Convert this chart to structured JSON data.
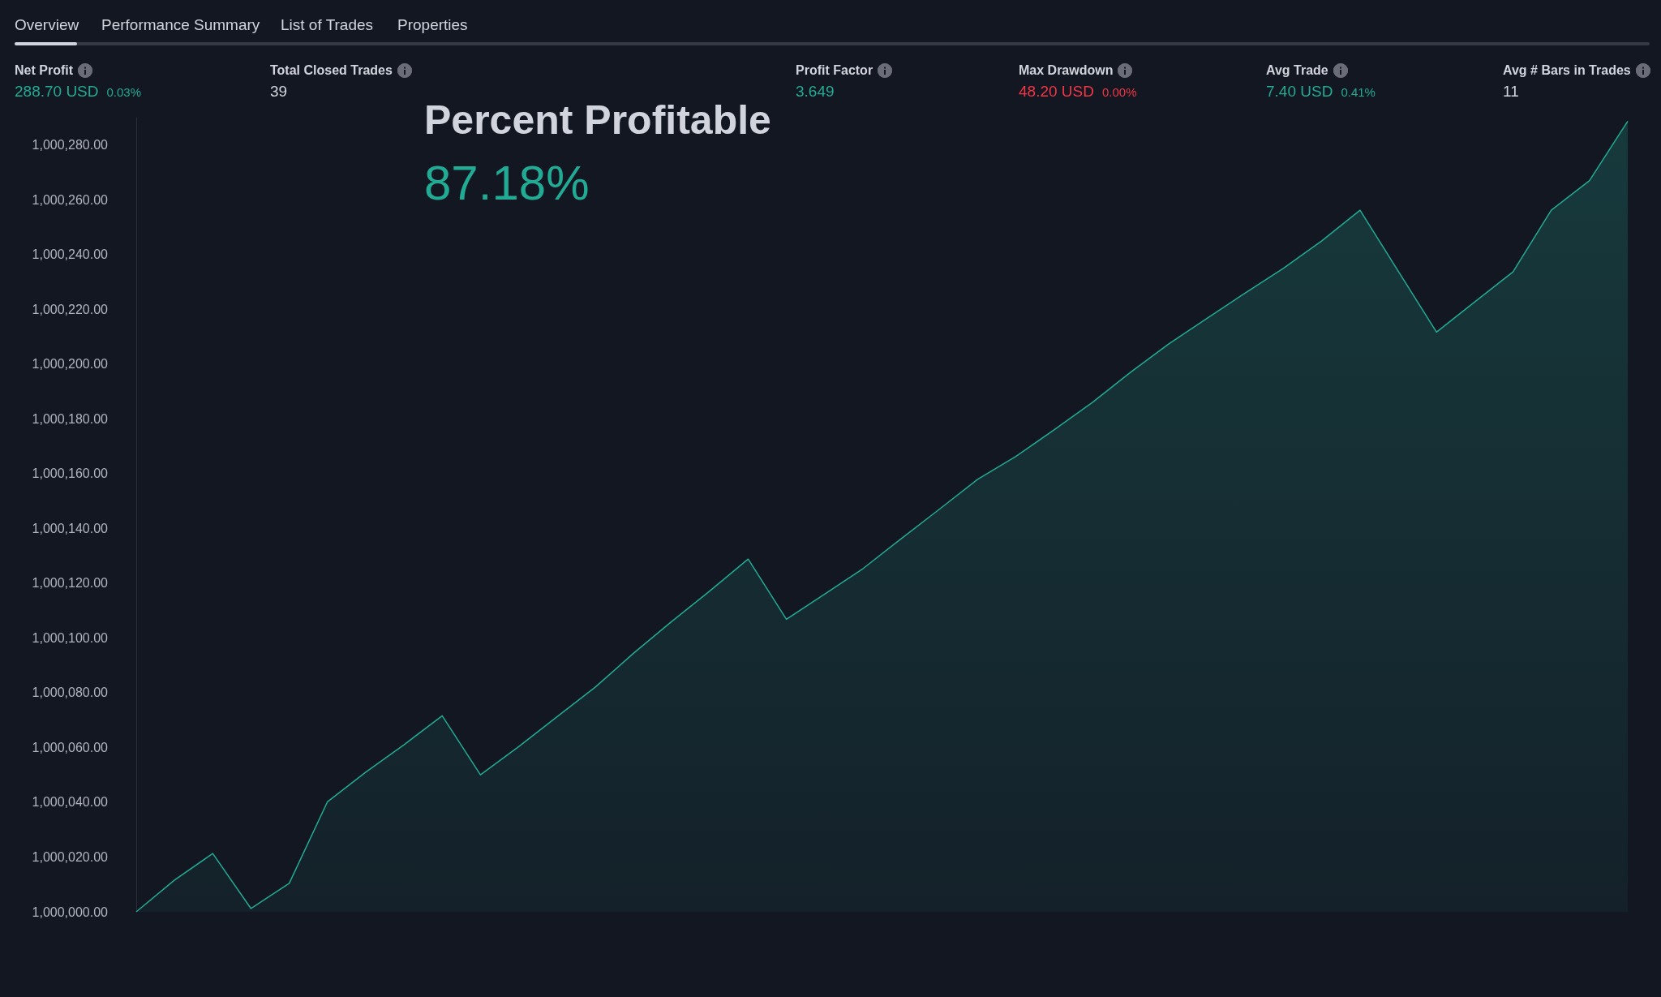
{
  "chart_data": {
    "type": "area",
    "title": "Percent Profitable",
    "subtitle": "87.18%",
    "annotations": [
      "Overview",
      "Performance Summary",
      "List of Trades",
      "Properties",
      "Net Profit",
      "288.70 USD",
      "0.03%",
      "Total Closed Trades",
      "39",
      "Profit Factor",
      "3.649",
      "Max Drawdown",
      "48.20 USD",
      "0.00%",
      "Avg Trade",
      "7.40 USD",
      "0.41%",
      "Avg # Bars in Trades",
      "11"
    ],
    "categories": [
      null,
      null,
      null,
      null,
      null,
      null,
      null,
      null,
      null,
      null,
      null,
      null,
      null,
      null,
      null,
      null,
      null,
      null,
      null,
      null,
      null,
      null,
      null,
      null,
      null,
      null,
      null,
      null,
      null,
      null,
      null,
      null,
      null,
      null,
      null,
      null,
      null,
      null,
      null,
      null
    ],
    "series": [
      {
        "color": "#22ab94",
        "values": [
          1000000,
          1000011.6,
          1000021.3,
          1000001.2,
          1000010.4,
          1000040.2,
          1000051,
          1000061,
          1000071.6,
          1000050,
          1000060.3,
          1000071.2,
          1000082,
          1000094.4,
          1000106,
          1000117.2,
          1000128.8,
          1000106.8,
          1000116,
          1000125.3,
          1000136.2,
          1000147,
          1000157.9,
          1000166.3,
          1000176,
          1000186,
          1000197,
          1000207.4,
          1000216.7,
          1000226,
          1000235,
          1000245,
          1000256.2,
          1000233.9,
          1000211.7,
          1000222.7,
          1000233.7,
          1000256.2,
          1000267,
          1000288.7
        ]
      }
    ],
    "ylim": [
      1000000,
      1000290
    ],
    "yticks": [
      {
        "value": 1000000,
        "label": "1,000,000.00"
      },
      {
        "value": 1000020,
        "label": "1,000,020.00"
      },
      {
        "value": 1000040,
        "label": "1,000,040.00"
      },
      {
        "value": 1000060,
        "label": "1,000,060.00"
      },
      {
        "value": 1000080,
        "label": "1,000,080.00"
      },
      {
        "value": 1000100,
        "label": "1,000,100.00"
      },
      {
        "value": 1000120,
        "label": "1,000,120.00"
      },
      {
        "value": 1000140,
        "label": "1,000,140.00"
      },
      {
        "value": 1000160,
        "label": "1,000,160.00"
      },
      {
        "value": 1000180,
        "label": "1,000,180.00"
      },
      {
        "value": 1000200,
        "label": "1,000,200.00"
      },
      {
        "value": 1000220,
        "label": "1,000,220.00"
      },
      {
        "value": 1000240,
        "label": "1,000,240.00"
      },
      {
        "value": 1000260,
        "label": "1,000,260.00"
      },
      {
        "value": 1000280,
        "label": "1,000,280.00"
      }
    ],
    "grid": false,
    "marker": "none",
    "tick_labels": "y"
  }
}
